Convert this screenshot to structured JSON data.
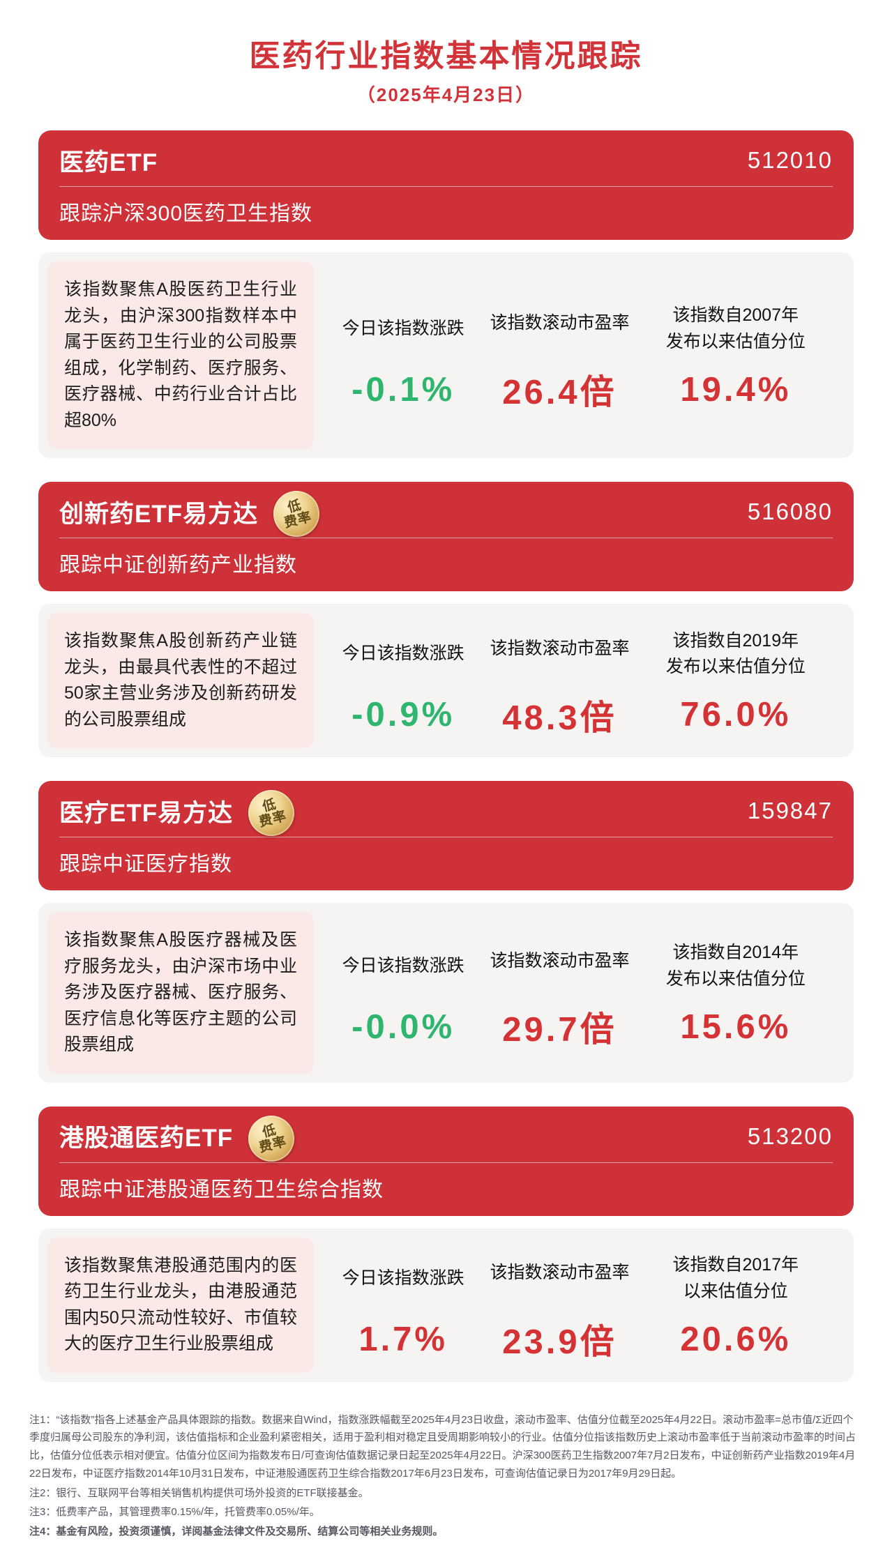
{
  "colors": {
    "brand_red": "#ce3137",
    "title_red": "#d23338",
    "panel_gray": "#f5f4f2",
    "pink_box": "#fbe9e7",
    "value_green": "#2eb56e",
    "value_red": "#d43234",
    "badge_gold": "#e8c87e"
  },
  "header": {
    "title": "医药行业指数基本情况跟踪",
    "date": "（2025年4月23日）"
  },
  "cards": [
    {
      "name": "医药ETF",
      "code": "512010",
      "tracking": "跟踪沪深300医药卫生指数",
      "description": "该指数聚焦A股医药卫生行业龙头，由沪深300指数样本中属于医药卫生行业的公司股票组成，化学制药、医疗服务、医疗器械、中药行业合计占比超80%",
      "metrics": [
        {
          "label": "今日该指数涨跌",
          "value": "-0.1%",
          "color": "green"
        },
        {
          "label": "该指数滚动市盈率",
          "value": "26.4倍",
          "color": "red"
        },
        {
          "label": "该指数自2007年\n发布以来估值分位",
          "value": "19.4%",
          "color": "red"
        }
      ]
    },
    {
      "name": "创新药ETF易方达",
      "code": "516080",
      "badge": {
        "line1": "低",
        "line2": "费率"
      },
      "tracking": "跟踪中证创新药产业指数",
      "description": "该指数聚焦A股创新药产业链龙头，由最具代表性的不超过50家主营业务涉及创新药研发的公司股票组成",
      "metrics": [
        {
          "label": "今日该指数涨跌",
          "value": "-0.9%",
          "color": "green"
        },
        {
          "label": "该指数滚动市盈率",
          "value": "48.3倍",
          "color": "red"
        },
        {
          "label": "该指数自2019年\n发布以来估值分位",
          "value": "76.0%",
          "color": "red"
        }
      ]
    },
    {
      "name": "医疗ETF易方达",
      "code": "159847",
      "badge": {
        "line1": "低",
        "line2": "费率"
      },
      "tracking": "跟踪中证医疗指数",
      "description": "该指数聚焦A股医疗器械及医疗服务龙头，由沪深市场中业务涉及医疗器械、医疗服务、医疗信息化等医疗主题的公司股票组成",
      "metrics": [
        {
          "label": "今日该指数涨跌",
          "value": "-0.0%",
          "color": "green"
        },
        {
          "label": "该指数滚动市盈率",
          "value": "29.7倍",
          "color": "red"
        },
        {
          "label": "该指数自2014年\n发布以来估值分位",
          "value": "15.6%",
          "color": "red"
        }
      ]
    },
    {
      "name": "港股通医药ETF",
      "code": "513200",
      "badge": {
        "line1": "低",
        "line2": "费率"
      },
      "tracking": "跟踪中证港股通医药卫生综合指数",
      "description": "该指数聚焦港股通范围内的医药卫生行业龙头，由港股通范围内50只流动性较好、市值较大的医疗卫生行业股票组成",
      "metrics": [
        {
          "label": "今日该指数涨跌",
          "value": "1.7%",
          "color": "red"
        },
        {
          "label": "该指数滚动市盈率",
          "value": "23.9倍",
          "color": "red"
        },
        {
          "label": "该指数自2017年\n以来估值分位",
          "value": "20.6%",
          "color": "red"
        }
      ]
    }
  ],
  "footnotes": [
    "注1：“该指数”指各上述基金产品具体跟踪的指数。数据来自Wind，指数涨跌幅截至2025年4月23日收盘，滚动市盈率、估值分位截至2025年4月22日。滚动市盈率=总市值/Σ近四个季度归属母公司股东的净利润，该估值指标和企业盈利紧密相关，适用于盈利相对稳定且受周期影响较小的行业。估值分位指该指数历史上滚动市盈率低于当前滚动市盈率的时间占比，估值分位低表示相对便宜。估值分位区间为指数发布日/可查询估值数据记录日起至2025年4月22日。沪深300医药卫生指数2007年7月2日发布，中证创新药产业指数2019年4月22日发布，中证医疗指数2014年10月31日发布，中证港股通医药卫生综合指数2017年6月23日发布，可查询估值记录日为2017年9月29日起。",
    "注2：银行、互联网平台等相关销售机构提供可场外投资的ETF联接基金。",
    "注3：低费率产品，其管理费率0.15%/年，托管费率0.05%/年。",
    "注4：基金有风险，投资须谨慎，详阅基金法律文件及交易所、结算公司等相关业务规则。"
  ]
}
